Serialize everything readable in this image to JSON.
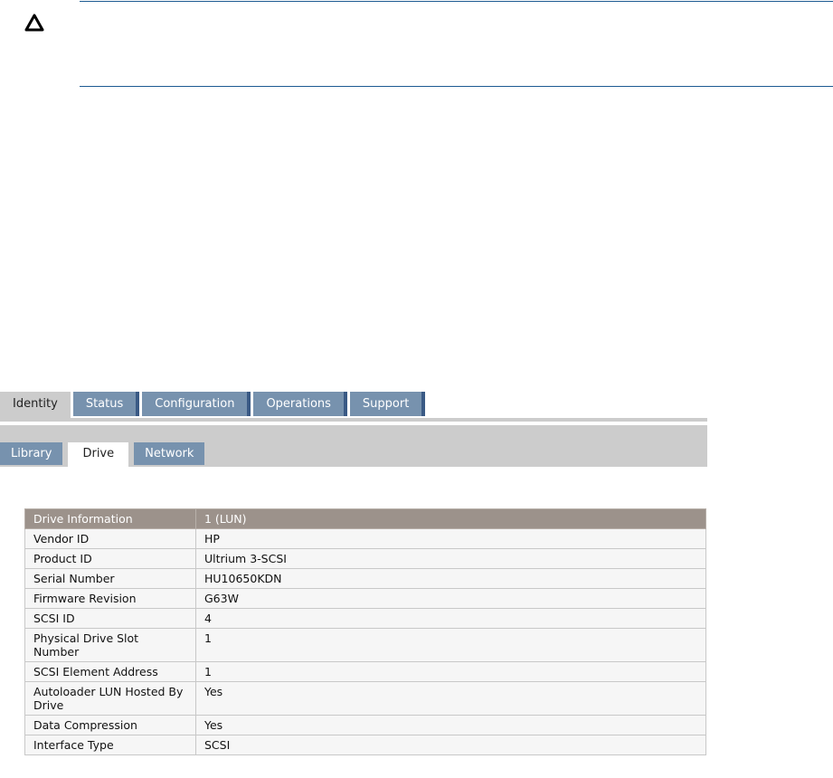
{
  "caution_icon": "caution-triangle-icon",
  "colors": {
    "rule": "#1d5a92",
    "tab": "#7792ae",
    "table_header": "#9c928b"
  },
  "tabs": [
    {
      "label": "Identity",
      "active": true
    },
    {
      "label": "Status"
    },
    {
      "label": "Configuration"
    },
    {
      "label": "Operations"
    },
    {
      "label": "Support"
    }
  ],
  "subtabs": [
    {
      "label": "Library"
    },
    {
      "label": "Drive",
      "active": true
    },
    {
      "label": "Network"
    }
  ],
  "table": {
    "header": [
      "Drive Information",
      "1 (LUN)"
    ],
    "rows": [
      [
        "Vendor ID",
        "HP"
      ],
      [
        "Product ID",
        "Ultrium 3-SCSI"
      ],
      [
        "Serial Number",
        "HU10650KDN"
      ],
      [
        "Firmware Revision",
        "G63W"
      ],
      [
        "SCSI ID",
        "4"
      ],
      [
        "Physical Drive Slot Number",
        "1"
      ],
      [
        "SCSI Element Address",
        "1"
      ],
      [
        "Autoloader LUN Hosted By Drive",
        "Yes"
      ],
      [
        "Data Compression",
        "Yes"
      ],
      [
        "Interface Type",
        "SCSI"
      ]
    ]
  }
}
